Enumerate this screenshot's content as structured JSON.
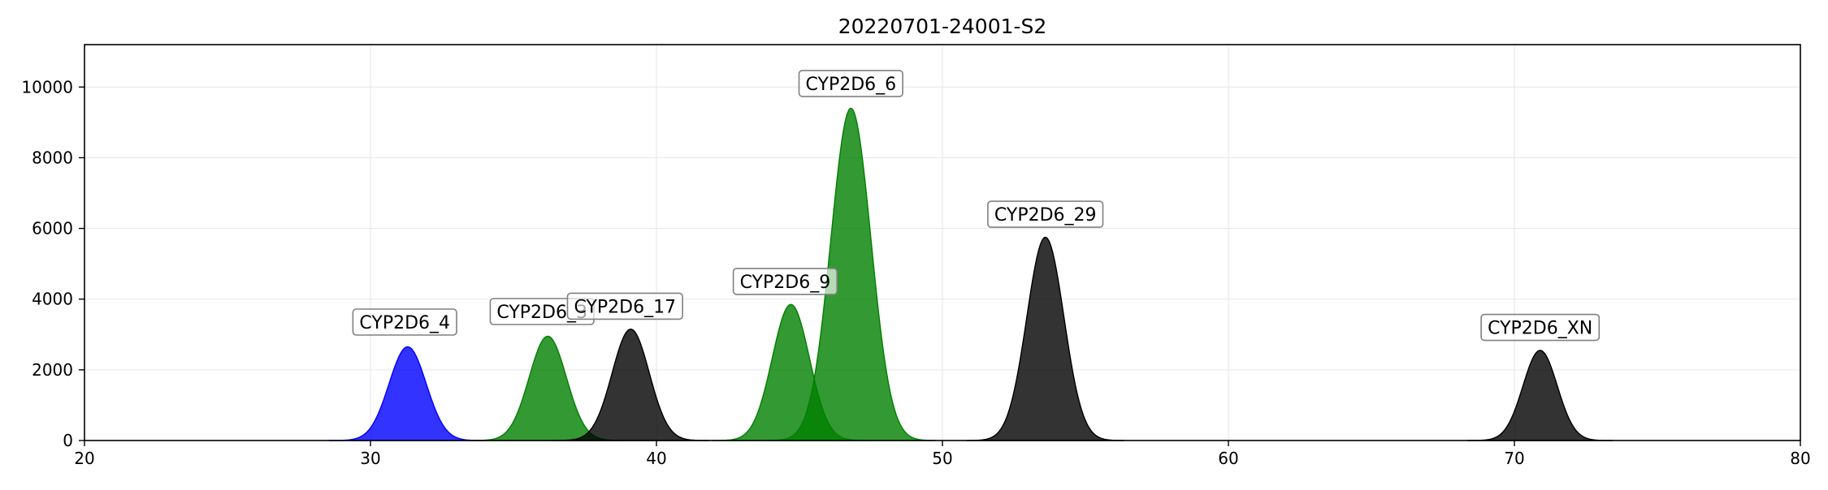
{
  "chart_data": {
    "type": "area",
    "title": "20220701-24001-S2",
    "xlabel": "",
    "ylabel": "",
    "xlim": [
      20,
      80
    ],
    "ylim": [
      0,
      11200
    ],
    "x_ticks": [
      20,
      30,
      40,
      50,
      60,
      70,
      80
    ],
    "y_ticks": [
      0,
      2000,
      4000,
      6000,
      8000,
      10000
    ],
    "grid": true,
    "peaks": [
      {
        "name": "CYP2D6_4",
        "center": 31.3,
        "sigma": 0.65,
        "height": 2650,
        "color": "#0000ff",
        "label_x": 31.2,
        "label_y": 3350
      },
      {
        "name": "CYP2D6_3",
        "center": 36.2,
        "sigma": 0.65,
        "height": 2950,
        "color": "#008000",
        "label_x": 36.0,
        "label_y": 3650
      },
      {
        "name": "CYP2D6_17",
        "center": 39.1,
        "sigma": 0.65,
        "height": 3150,
        "color": "#000000",
        "label_x": 38.9,
        "label_y": 3800
      },
      {
        "name": "CYP2D6_9",
        "center": 44.7,
        "sigma": 0.65,
        "height": 3850,
        "color": "#008000",
        "label_x": 44.5,
        "label_y": 4500
      },
      {
        "name": "CYP2D6_6",
        "center": 46.8,
        "sigma": 0.7,
        "height": 9400,
        "color": "#008000",
        "label_x": 46.8,
        "label_y": 10100
      },
      {
        "name": "CYP2D6_29",
        "center": 53.6,
        "sigma": 0.65,
        "height": 5750,
        "color": "#000000",
        "label_x": 53.6,
        "label_y": 6400
      },
      {
        "name": "CYP2D6_XN",
        "center": 70.9,
        "sigma": 0.6,
        "height": 2550,
        "color": "#000000",
        "label_x": 70.9,
        "label_y": 3200
      }
    ]
  }
}
